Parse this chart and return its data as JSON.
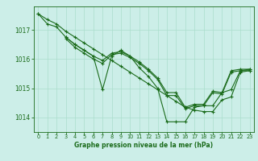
{
  "title": "Graphe pression niveau de la mer (hPa)",
  "bg_color": "#cceee8",
  "grid_color": "#aaddcc",
  "line_color": "#1a6b1a",
  "marker_color": "#1a6b1a",
  "xlim": [
    -0.5,
    23.5
  ],
  "ylim": [
    1013.5,
    1017.8
  ],
  "yticks": [
    1014,
    1015,
    1016,
    1017
  ],
  "xticks": [
    0,
    1,
    2,
    3,
    4,
    5,
    6,
    7,
    8,
    9,
    10,
    11,
    12,
    13,
    14,
    15,
    16,
    17,
    18,
    19,
    20,
    21,
    22,
    23
  ],
  "series": [
    {
      "x": [
        0,
        1,
        2,
        3,
        4,
        5,
        6,
        7,
        8,
        9,
        10,
        11,
        12,
        13,
        14,
        15,
        16,
        17,
        18,
        19,
        20,
        21,
        22,
        23
      ],
      "y": [
        1017.55,
        1017.2,
        1017.1,
        1016.75,
        1016.5,
        1016.3,
        1016.1,
        1014.95,
        1016.1,
        1016.3,
        1016.1,
        1015.7,
        1015.4,
        1015.0,
        1013.85,
        1013.85,
        1013.85,
        1014.35,
        1014.4,
        1014.4,
        1014.85,
        1014.95,
        1015.6,
        1015.65
      ]
    },
    {
      "x": [
        3,
        4,
        5,
        6,
        7,
        8,
        9,
        10,
        11,
        12,
        13,
        14,
        15,
        16,
        17,
        18,
        19,
        20,
        21,
        22,
        23
      ],
      "y": [
        1016.75,
        1016.5,
        1016.3,
        1016.1,
        1015.95,
        1016.2,
        1016.25,
        1016.1,
        1015.9,
        1015.65,
        1015.35,
        1014.85,
        1014.85,
        1014.35,
        1014.45,
        1014.45,
        1014.9,
        1014.85,
        1015.6,
        1015.65,
        1015.65
      ]
    },
    {
      "x": [
        3,
        4,
        5,
        6,
        7,
        8,
        9,
        10,
        11,
        12,
        13,
        14,
        15,
        16,
        17,
        18,
        19,
        20,
        21,
        22,
        23
      ],
      "y": [
        1016.7,
        1016.4,
        1016.2,
        1016.0,
        1015.85,
        1016.15,
        1016.2,
        1016.05,
        1015.85,
        1015.6,
        1015.3,
        1014.75,
        1014.75,
        1014.3,
        1014.4,
        1014.4,
        1014.85,
        1014.8,
        1015.55,
        1015.6,
        1015.6
      ]
    },
    {
      "x": [
        0,
        1,
        2,
        3,
        4,
        5,
        6,
        7,
        8,
        9,
        10,
        11,
        12,
        13,
        14,
        15,
        16,
        17,
        18,
        19,
        20,
        21,
        22,
        23
      ],
      "y": [
        1017.55,
        1017.35,
        1017.2,
        1016.95,
        1016.75,
        1016.55,
        1016.35,
        1016.15,
        1015.95,
        1015.75,
        1015.55,
        1015.35,
        1015.15,
        1014.95,
        1014.75,
        1014.55,
        1014.35,
        1014.25,
        1014.2,
        1014.2,
        1014.6,
        1014.7,
        1015.55,
        1015.6
      ]
    }
  ]
}
